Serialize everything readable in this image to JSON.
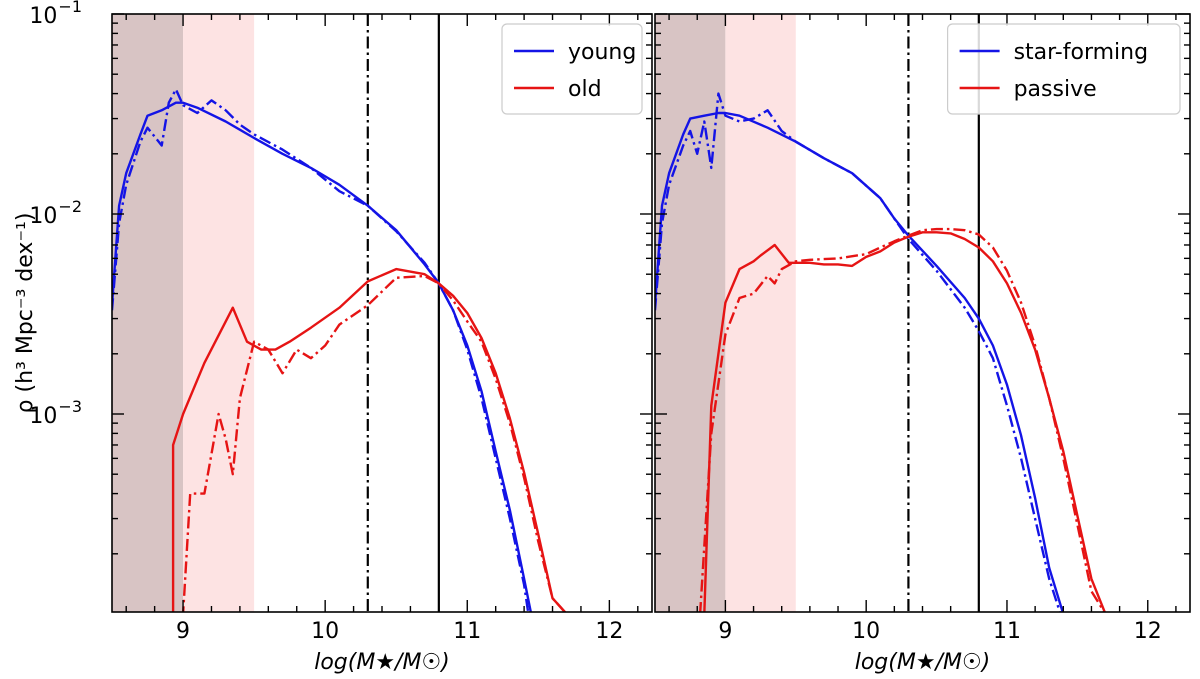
{
  "chart_data": [
    {
      "type": "line",
      "panel": "left",
      "xlabel": "log(M★/M☉)",
      "ylabel": "ρ (h³ Mpc⁻³ dex⁻¹)",
      "xlim": [
        8.5,
        12.3
      ],
      "ylim": [
        0.00012,
        0.1
      ],
      "yscale": "log",
      "xticks": [
        9,
        10,
        11,
        12
      ],
      "ytick_labels": [
        {
          "value": 0.1,
          "base": "10",
          "exp": "−1"
        },
        {
          "value": 0.01,
          "base": "10",
          "exp": "−2"
        },
        {
          "value": 0.001,
          "base": "10",
          "exp": "−3"
        }
      ],
      "shaded_regions": [
        {
          "x0": 8.5,
          "x1": 9.0,
          "color": "#d8c4c4"
        },
        {
          "x0": 9.0,
          "x1": 9.5,
          "color": "#fde3e3"
        }
      ],
      "vlines": [
        {
          "x": 10.3,
          "style": "dashdot",
          "color": "#000000"
        },
        {
          "x": 10.8,
          "style": "solid",
          "color": "#000000"
        }
      ],
      "legend": {
        "position": "top-right",
        "entries": [
          {
            "label": "young",
            "color": "#1414e6"
          },
          {
            "label": "old",
            "color": "#e61414"
          }
        ]
      },
      "series": [
        {
          "name": "young",
          "color": "#1414e6",
          "style": "solid",
          "x": [
            8.5,
            8.55,
            8.6,
            8.7,
            8.75,
            8.85,
            8.95,
            9.0,
            9.1,
            9.3,
            9.5,
            9.7,
            9.9,
            10.1,
            10.3,
            10.5,
            10.7,
            10.8,
            10.9,
            11.0,
            11.1,
            11.2,
            11.3,
            11.4,
            11.45
          ],
          "y": [
            0.0035,
            0.011,
            0.016,
            0.025,
            0.031,
            0.033,
            0.036,
            0.036,
            0.034,
            0.029,
            0.024,
            0.02,
            0.017,
            0.014,
            0.011,
            0.0083,
            0.0056,
            0.0045,
            0.0033,
            0.0022,
            0.0013,
            0.00065,
            0.00033,
            0.00015,
            0.0001
          ]
        },
        {
          "name": "young (dash-dot)",
          "color": "#1414e6",
          "style": "dashdot",
          "x": [
            8.5,
            8.55,
            8.6,
            8.7,
            8.75,
            8.85,
            8.9,
            8.95,
            9.0,
            9.1,
            9.2,
            9.3,
            9.4,
            9.5,
            9.7,
            9.9,
            10.1,
            10.3,
            10.5,
            10.7,
            10.8,
            10.9,
            11.0,
            11.1,
            11.2,
            11.3,
            11.4,
            11.43
          ],
          "y": [
            0.0033,
            0.009,
            0.014,
            0.023,
            0.027,
            0.022,
            0.036,
            0.042,
            0.035,
            0.032,
            0.037,
            0.033,
            0.028,
            0.025,
            0.021,
            0.017,
            0.013,
            0.011,
            0.0082,
            0.0057,
            0.0045,
            0.0033,
            0.0021,
            0.0012,
            0.0006,
            0.0003,
            0.00014,
            0.0001
          ]
        },
        {
          "name": "old",
          "color": "#e61414",
          "style": "solid",
          "x": [
            8.93,
            8.93,
            9.0,
            9.15,
            9.35,
            9.45,
            9.55,
            9.65,
            9.75,
            9.9,
            10.1,
            10.3,
            10.5,
            10.7,
            10.8,
            10.9,
            11.0,
            11.1,
            11.2,
            11.3,
            11.4,
            11.5,
            11.6,
            11.7
          ],
          "y": [
            0.0001,
            0.0007,
            0.001,
            0.0018,
            0.0034,
            0.0023,
            0.0021,
            0.0021,
            0.0023,
            0.0027,
            0.0034,
            0.0046,
            0.0053,
            0.005,
            0.0045,
            0.0039,
            0.0032,
            0.0024,
            0.0016,
            0.00095,
            0.00051,
            0.00025,
            0.00012,
            0.0001
          ]
        },
        {
          "name": "old (dash-dot)",
          "color": "#e61414",
          "style": "dashdot",
          "x": [
            8.97,
            9.0,
            9.05,
            9.15,
            9.25,
            9.3,
            9.35,
            9.4,
            9.5,
            9.6,
            9.7,
            9.8,
            9.9,
            10.0,
            10.1,
            10.3,
            10.5,
            10.7,
            10.8,
            10.9,
            11.0,
            11.1,
            11.2,
            11.3,
            11.4,
            11.5,
            11.6,
            11.7
          ],
          "y": [
            0.0001,
            0.0001,
            0.0004,
            0.0004,
            0.001,
            0.00075,
            0.0005,
            0.0012,
            0.0023,
            0.0021,
            0.0016,
            0.0021,
            0.0019,
            0.0022,
            0.0028,
            0.0035,
            0.0048,
            0.0049,
            0.0045,
            0.0037,
            0.0029,
            0.0023,
            0.0015,
            0.0009,
            0.00048,
            0.00023,
            0.00012,
            0.0001
          ]
        }
      ]
    },
    {
      "type": "line",
      "panel": "right",
      "xlabel": "log(M★/M☉)",
      "ylabel": "",
      "xlim": [
        8.5,
        12.3
      ],
      "ylim": [
        0.00012,
        0.1
      ],
      "yscale": "log",
      "xticks": [
        9,
        10,
        11,
        12
      ],
      "ytick_labels": [],
      "shaded_regions": [
        {
          "x0": 8.5,
          "x1": 9.0,
          "color": "#d8c4c4"
        },
        {
          "x0": 9.0,
          "x1": 9.5,
          "color": "#fde3e3"
        }
      ],
      "vlines": [
        {
          "x": 10.3,
          "style": "dashdot",
          "color": "#000000"
        },
        {
          "x": 10.8,
          "style": "solid",
          "color": "#000000"
        }
      ],
      "legend": {
        "position": "top-right",
        "entries": [
          {
            "label": "star-forming",
            "color": "#1414e6"
          },
          {
            "label": "passive",
            "color": "#e61414"
          }
        ]
      },
      "series": [
        {
          "name": "star-forming",
          "color": "#1414e6",
          "style": "solid",
          "x": [
            8.5,
            8.55,
            8.6,
            8.7,
            8.75,
            8.85,
            8.95,
            9.0,
            9.1,
            9.3,
            9.5,
            9.7,
            9.9,
            10.1,
            10.2,
            10.3,
            10.5,
            10.7,
            10.8,
            10.9,
            11.0,
            11.1,
            11.2,
            11.3,
            11.4
          ],
          "y": [
            0.0035,
            0.011,
            0.016,
            0.025,
            0.03,
            0.031,
            0.032,
            0.032,
            0.031,
            0.027,
            0.023,
            0.019,
            0.016,
            0.012,
            0.0095,
            0.0078,
            0.0055,
            0.0038,
            0.003,
            0.0022,
            0.0014,
            0.00078,
            0.00038,
            0.00017,
            0.0001
          ]
        },
        {
          "name": "star-forming (dash-dot)",
          "color": "#1414e6",
          "style": "dashdot",
          "x": [
            8.5,
            8.55,
            8.6,
            8.7,
            8.75,
            8.8,
            8.85,
            8.9,
            8.95,
            9.0,
            9.1,
            9.2,
            9.3,
            9.4,
            9.5,
            9.7,
            9.9,
            10.1,
            10.3,
            10.5,
            10.7,
            10.8,
            10.9,
            11.0,
            11.1,
            11.2,
            11.3,
            11.38
          ],
          "y": [
            0.0033,
            0.009,
            0.014,
            0.022,
            0.026,
            0.02,
            0.029,
            0.017,
            0.04,
            0.031,
            0.029,
            0.03,
            0.033,
            0.026,
            0.023,
            0.019,
            0.016,
            0.012,
            0.0075,
            0.0052,
            0.0034,
            0.0026,
            0.0019,
            0.0011,
            0.0006,
            0.0003,
            0.00015,
            0.0001
          ]
        },
        {
          "name": "passive",
          "color": "#e61414",
          "style": "solid",
          "x": [
            8.85,
            8.9,
            9.0,
            9.1,
            9.2,
            9.25,
            9.35,
            9.45,
            9.5,
            9.6,
            9.7,
            9.8,
            9.9,
            10.0,
            10.1,
            10.2,
            10.3,
            10.4,
            10.5,
            10.6,
            10.7,
            10.8,
            10.9,
            11.0,
            11.1,
            11.2,
            11.3,
            11.4,
            11.5,
            11.6,
            11.7
          ],
          "y": [
            0.0001,
            0.0011,
            0.0036,
            0.0053,
            0.0058,
            0.0062,
            0.007,
            0.0057,
            0.0057,
            0.0057,
            0.0056,
            0.0056,
            0.0055,
            0.0061,
            0.0065,
            0.0072,
            0.0077,
            0.0081,
            0.0081,
            0.008,
            0.0075,
            0.0068,
            0.0058,
            0.0045,
            0.0032,
            0.0021,
            0.0012,
            0.00065,
            0.00031,
            0.00015,
            0.0001
          ]
        },
        {
          "name": "passive (dash-dot)",
          "color": "#e61414",
          "style": "dashdot",
          "x": [
            8.82,
            8.9,
            9.0,
            9.1,
            9.2,
            9.3,
            9.35,
            9.4,
            9.5,
            9.6,
            9.8,
            10.0,
            10.1,
            10.2,
            10.3,
            10.4,
            10.5,
            10.6,
            10.7,
            10.8,
            10.9,
            11.0,
            11.1,
            11.2,
            11.3,
            11.4,
            11.5,
            11.6,
            11.7
          ],
          "y": [
            0.0001,
            0.0008,
            0.0025,
            0.0038,
            0.004,
            0.0049,
            0.0045,
            0.0053,
            0.0058,
            0.0059,
            0.006,
            0.0063,
            0.0068,
            0.0073,
            0.0078,
            0.0083,
            0.0084,
            0.0084,
            0.0083,
            0.0079,
            0.0068,
            0.0052,
            0.0036,
            0.0022,
            0.0012,
            0.0006,
            0.00028,
            0.00013,
            0.0001
          ]
        }
      ]
    }
  ]
}
